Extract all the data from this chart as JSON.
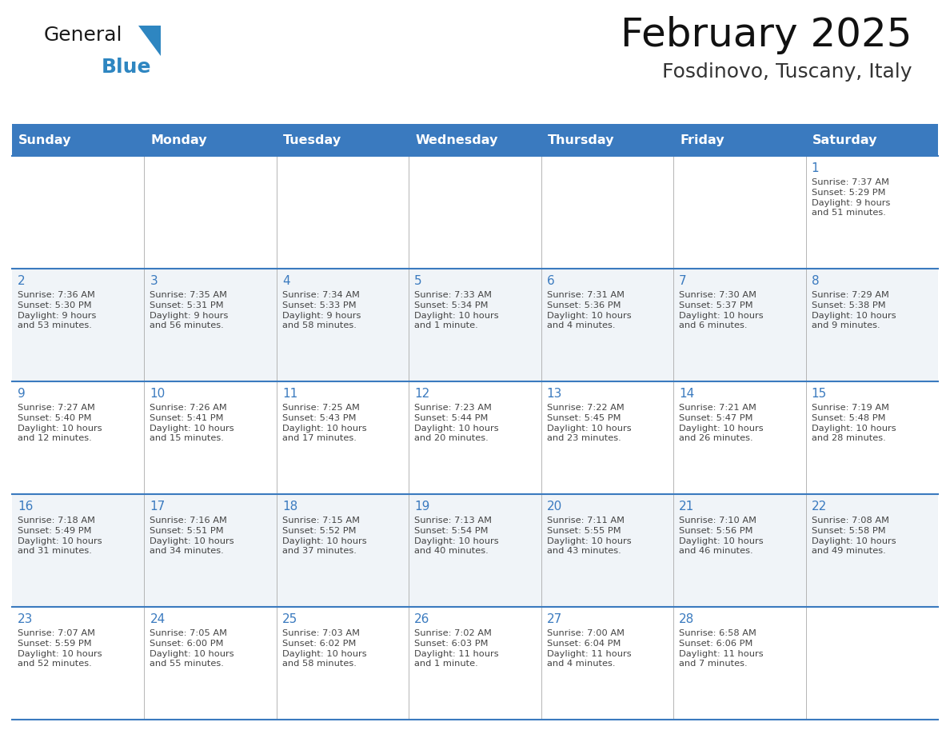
{
  "title": "February 2025",
  "subtitle": "Fosdinovo, Tuscany, Italy",
  "header_bg": "#3a7abf",
  "header_text_color": "#ffffff",
  "grid_color": "#3a7abf",
  "day_number_color": "#3a7abf",
  "cell_text_color": "#444444",
  "row_separator_color": "#3a7abf",
  "col_separator_color": "#aaaaaa",
  "days_of_week": [
    "Sunday",
    "Monday",
    "Tuesday",
    "Wednesday",
    "Thursday",
    "Friday",
    "Saturday"
  ],
  "weeks": [
    [
      {
        "day": null,
        "sunrise": null,
        "sunset": null,
        "daylight": null
      },
      {
        "day": null,
        "sunrise": null,
        "sunset": null,
        "daylight": null
      },
      {
        "day": null,
        "sunrise": null,
        "sunset": null,
        "daylight": null
      },
      {
        "day": null,
        "sunrise": null,
        "sunset": null,
        "daylight": null
      },
      {
        "day": null,
        "sunrise": null,
        "sunset": null,
        "daylight": null
      },
      {
        "day": null,
        "sunrise": null,
        "sunset": null,
        "daylight": null
      },
      {
        "day": 1,
        "sunrise": "7:37 AM",
        "sunset": "5:29 PM",
        "daylight": "9 hours\nand 51 minutes."
      }
    ],
    [
      {
        "day": 2,
        "sunrise": "7:36 AM",
        "sunset": "5:30 PM",
        "daylight": "9 hours\nand 53 minutes."
      },
      {
        "day": 3,
        "sunrise": "7:35 AM",
        "sunset": "5:31 PM",
        "daylight": "9 hours\nand 56 minutes."
      },
      {
        "day": 4,
        "sunrise": "7:34 AM",
        "sunset": "5:33 PM",
        "daylight": "9 hours\nand 58 minutes."
      },
      {
        "day": 5,
        "sunrise": "7:33 AM",
        "sunset": "5:34 PM",
        "daylight": "10 hours\nand 1 minute."
      },
      {
        "day": 6,
        "sunrise": "7:31 AM",
        "sunset": "5:36 PM",
        "daylight": "10 hours\nand 4 minutes."
      },
      {
        "day": 7,
        "sunrise": "7:30 AM",
        "sunset": "5:37 PM",
        "daylight": "10 hours\nand 6 minutes."
      },
      {
        "day": 8,
        "sunrise": "7:29 AM",
        "sunset": "5:38 PM",
        "daylight": "10 hours\nand 9 minutes."
      }
    ],
    [
      {
        "day": 9,
        "sunrise": "7:27 AM",
        "sunset": "5:40 PM",
        "daylight": "10 hours\nand 12 minutes."
      },
      {
        "day": 10,
        "sunrise": "7:26 AM",
        "sunset": "5:41 PM",
        "daylight": "10 hours\nand 15 minutes."
      },
      {
        "day": 11,
        "sunrise": "7:25 AM",
        "sunset": "5:43 PM",
        "daylight": "10 hours\nand 17 minutes."
      },
      {
        "day": 12,
        "sunrise": "7:23 AM",
        "sunset": "5:44 PM",
        "daylight": "10 hours\nand 20 minutes."
      },
      {
        "day": 13,
        "sunrise": "7:22 AM",
        "sunset": "5:45 PM",
        "daylight": "10 hours\nand 23 minutes."
      },
      {
        "day": 14,
        "sunrise": "7:21 AM",
        "sunset": "5:47 PM",
        "daylight": "10 hours\nand 26 minutes."
      },
      {
        "day": 15,
        "sunrise": "7:19 AM",
        "sunset": "5:48 PM",
        "daylight": "10 hours\nand 28 minutes."
      }
    ],
    [
      {
        "day": 16,
        "sunrise": "7:18 AM",
        "sunset": "5:49 PM",
        "daylight": "10 hours\nand 31 minutes."
      },
      {
        "day": 17,
        "sunrise": "7:16 AM",
        "sunset": "5:51 PM",
        "daylight": "10 hours\nand 34 minutes."
      },
      {
        "day": 18,
        "sunrise": "7:15 AM",
        "sunset": "5:52 PM",
        "daylight": "10 hours\nand 37 minutes."
      },
      {
        "day": 19,
        "sunrise": "7:13 AM",
        "sunset": "5:54 PM",
        "daylight": "10 hours\nand 40 minutes."
      },
      {
        "day": 20,
        "sunrise": "7:11 AM",
        "sunset": "5:55 PM",
        "daylight": "10 hours\nand 43 minutes."
      },
      {
        "day": 21,
        "sunrise": "7:10 AM",
        "sunset": "5:56 PM",
        "daylight": "10 hours\nand 46 minutes."
      },
      {
        "day": 22,
        "sunrise": "7:08 AM",
        "sunset": "5:58 PM",
        "daylight": "10 hours\nand 49 minutes."
      }
    ],
    [
      {
        "day": 23,
        "sunrise": "7:07 AM",
        "sunset": "5:59 PM",
        "daylight": "10 hours\nand 52 minutes."
      },
      {
        "day": 24,
        "sunrise": "7:05 AM",
        "sunset": "6:00 PM",
        "daylight": "10 hours\nand 55 minutes."
      },
      {
        "day": 25,
        "sunrise": "7:03 AM",
        "sunset": "6:02 PM",
        "daylight": "10 hours\nand 58 minutes."
      },
      {
        "day": 26,
        "sunrise": "7:02 AM",
        "sunset": "6:03 PM",
        "daylight": "11 hours\nand 1 minute."
      },
      {
        "day": 27,
        "sunrise": "7:00 AM",
        "sunset": "6:04 PM",
        "daylight": "11 hours\nand 4 minutes."
      },
      {
        "day": 28,
        "sunrise": "6:58 AM",
        "sunset": "6:06 PM",
        "daylight": "11 hours\nand 7 minutes."
      },
      {
        "day": null,
        "sunrise": null,
        "sunset": null,
        "daylight": null
      }
    ]
  ],
  "logo_general_color": "#1a1a1a",
  "logo_blue_color": "#2e86c1",
  "figsize": [
    11.88,
    9.18
  ],
  "dpi": 100
}
